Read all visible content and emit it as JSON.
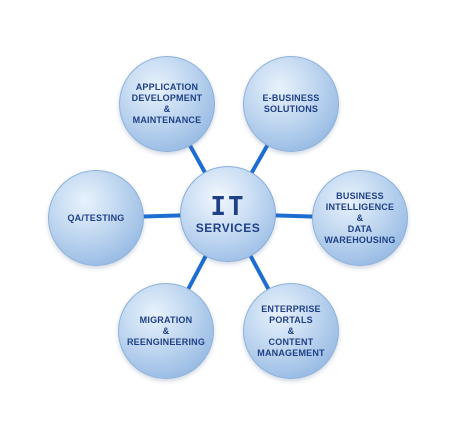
{
  "center": {
    "line1": "IT",
    "line2": "SERVICES"
  },
  "nodes": {
    "app_dev": "APPLICATION\nDEVELOPMENT\n&\nMAINTENANCE",
    "ebusiness": "E-BUSINESS\nSOLUTIONS",
    "qa": "QA/TESTING",
    "bi": "BUSINESS\nINTELLIGENCE\n&\nDATA\nWAREHOUSING",
    "migration": "MIGRATION\n&\nREENGINEERING",
    "enterprise": "ENTERPRISE\nPORTALS\n&\nCONTENT\nMANAGEMENT"
  },
  "colors": {
    "connector": "#1e6ed2",
    "text": "#1f3f86",
    "node_fill": "#b6d0ef"
  }
}
